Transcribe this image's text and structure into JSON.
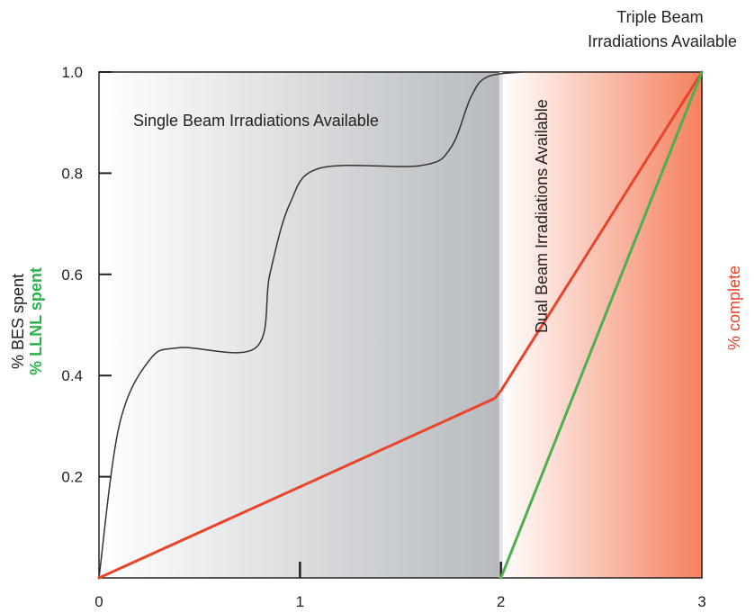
{
  "chart_data": {
    "type": "line",
    "title": "",
    "x_ticks": [
      "0",
      "1",
      "2",
      "3"
    ],
    "y_ticks": [
      "0.2",
      "0.4",
      "0.6",
      "0.8",
      "1.0"
    ],
    "xlim": [
      0,
      3
    ],
    "ylim": [
      0,
      1
    ],
    "grid": false,
    "ylabels": [
      {
        "text": "% BES spent",
        "color": "#222222"
      },
      {
        "text": "% LLNL spent",
        "color": "#2bb24c"
      }
    ],
    "right_label": {
      "text": "% complete",
      "color": "#e8452c"
    },
    "regions": [
      {
        "label": "Single Beam Irradiations Available",
        "x": [
          0,
          2
        ],
        "style": "gray-gradient"
      },
      {
        "label": "Dual Beam Irradiations Available",
        "x": [
          2,
          3
        ],
        "style": "red-gradient"
      },
      {
        "label_lines": [
          "Triple Beam",
          "Irradiations Available"
        ],
        "x": [
          3,
          3
        ],
        "style": "none"
      }
    ],
    "series": [
      {
        "color": "#333333",
        "curve": "smooth",
        "points": [
          [
            0,
            0
          ],
          [
            0.1,
            0.3
          ],
          [
            0.25,
            0.43
          ],
          [
            0.4,
            0.455
          ],
          [
            0.78,
            0.455
          ],
          [
            0.85,
            0.6
          ],
          [
            0.95,
            0.74
          ],
          [
            1.1,
            0.81
          ],
          [
            1.6,
            0.815
          ],
          [
            1.75,
            0.85
          ],
          [
            1.85,
            0.95
          ],
          [
            1.93,
            0.99
          ],
          [
            2.1,
            1.0
          ]
        ]
      },
      {
        "color": "#e8452c",
        "curve": "linear",
        "points": [
          [
            0,
            0
          ],
          [
            1,
            0.18
          ],
          [
            1.97,
            0.355
          ],
          [
            2,
            0.37
          ],
          [
            3,
            1.0
          ]
        ]
      },
      {
        "color": "#4caf50",
        "curve": "linear",
        "points": [
          [
            2,
            0
          ],
          [
            3,
            1.0
          ]
        ]
      }
    ]
  }
}
